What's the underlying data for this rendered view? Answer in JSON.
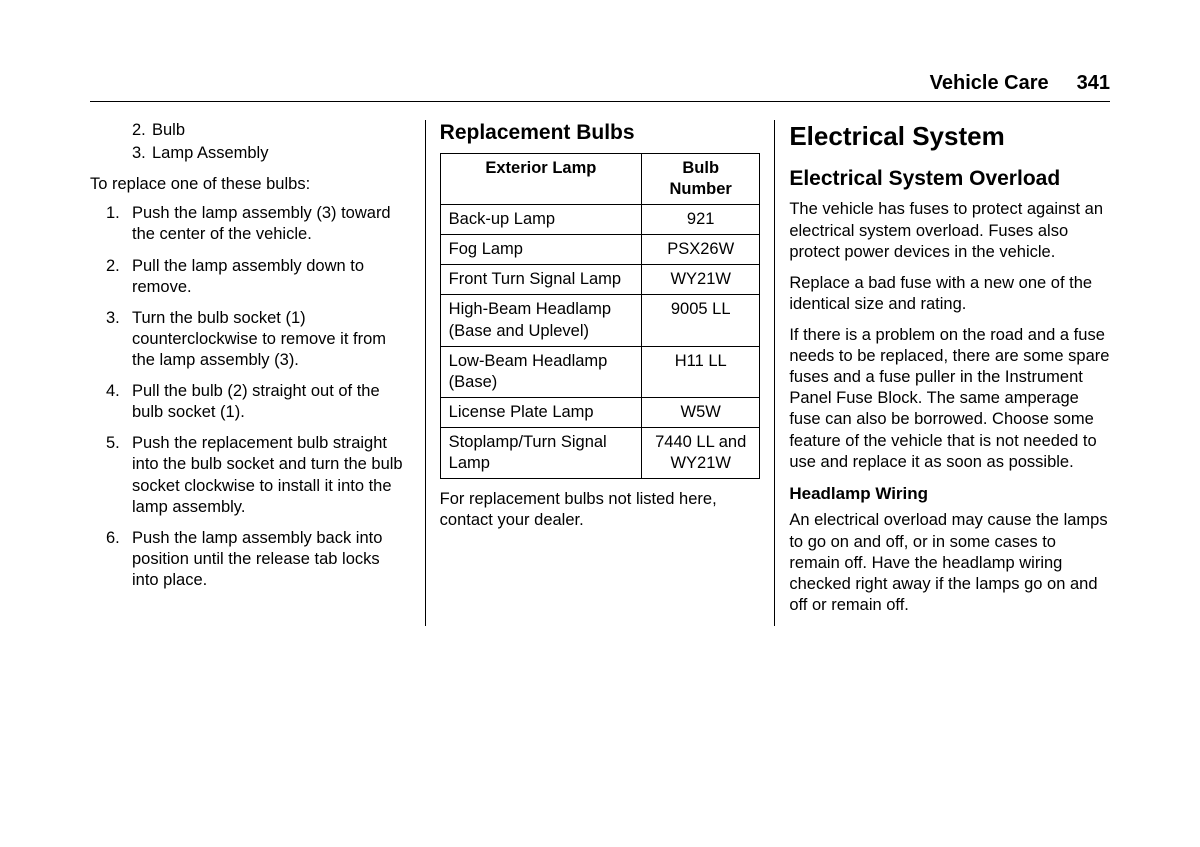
{
  "header": {
    "title": "Vehicle Care",
    "page_number": "341"
  },
  "col1": {
    "parts_list": [
      {
        "num": "2.",
        "label": "Bulb"
      },
      {
        "num": "3.",
        "label": "Lamp Assembly"
      }
    ],
    "intro": "To replace one of these bulbs:",
    "steps": [
      {
        "num": "1.",
        "text": "Push the lamp assembly (3) toward the center of the vehicle."
      },
      {
        "num": "2.",
        "text": "Pull the lamp assembly down to remove."
      },
      {
        "num": "3.",
        "text": "Turn the bulb socket (1) counterclockwise to remove it from the lamp assembly (3)."
      },
      {
        "num": "4.",
        "text": "Pull the bulb (2) straight out of the bulb socket (1)."
      },
      {
        "num": "5.",
        "text": "Push the replacement bulb straight into the bulb socket and turn the bulb socket clockwise to install it into the lamp assembly."
      },
      {
        "num": "6.",
        "text": "Push the lamp assembly back into position until the release tab locks into place."
      }
    ]
  },
  "col2": {
    "heading": "Replacement Bulbs",
    "table": {
      "headers": [
        "Exterior Lamp",
        "Bulb Number"
      ],
      "rows": [
        [
          "Back-up Lamp",
          "921"
        ],
        [
          "Fog Lamp",
          "PSX26W"
        ],
        [
          "Front Turn Signal Lamp",
          "WY21W"
        ],
        [
          "High-Beam Headlamp (Base and Uplevel)",
          "9005 LL"
        ],
        [
          "Low-Beam Headlamp (Base)",
          "H11 LL"
        ],
        [
          "License Plate Lamp",
          "W5W"
        ],
        [
          "Stoplamp/Turn Signal Lamp",
          "7440 LL and WY21W"
        ]
      ]
    },
    "note": "For replacement bulbs not listed here, contact your dealer."
  },
  "col3": {
    "heading1": "Electrical System",
    "heading2": "Electrical System Overload",
    "paragraphs": [
      "The vehicle has fuses to protect against an electrical system overload. Fuses also protect power devices in the vehicle.",
      "Replace a bad fuse with a new one of the identical size and rating.",
      "If there is a problem on the road and a fuse needs to be replaced, there are some spare fuses and a fuse puller in the Instrument Panel Fuse Block. The same amperage fuse can also be borrowed. Choose some feature of the vehicle that is not needed to use and replace it as soon as possible."
    ],
    "heading3": "Headlamp Wiring",
    "paragraph4": "An electrical overload may cause the lamps to go on and off, or in some cases to remain off. Have the headlamp wiring checked right away if the lamps go on and off or remain off."
  }
}
